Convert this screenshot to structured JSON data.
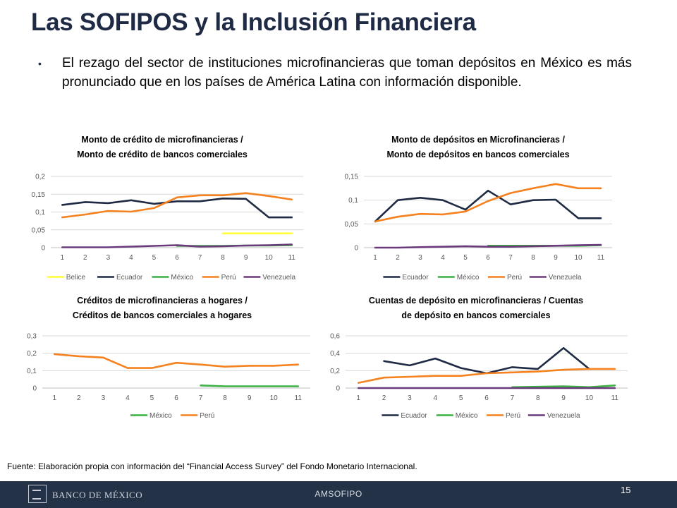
{
  "slide": {
    "title": "Las SOFIPOS y la Inclusión Financiera",
    "bullet": "El rezago del sector de instituciones microfinancieras que toman depósitos en México es más pronunciado que en los países de América Latina con información disponible.",
    "source": "Fuente: Elaboración propia con información del “Financial Access Survey” del Fondo Monetario Internacional.",
    "footer_center": "AMSOFIPO",
    "footer_brand": "BANCO DE MÉXICO",
    "page_number": "15"
  },
  "colors": {
    "Belice": "#ffff33",
    "Ecuador": "#1f2a44",
    "México": "#3cb043",
    "Perú": "#f5821f",
    "Venezuela": "#6b3a7d",
    "title": "#1f2a44",
    "grid": "#d9d9d9",
    "footer": "#243247"
  },
  "chart_data": [
    {
      "type": "line",
      "title": [
        "Monto de crédito de microfinancieras /",
        "Monto de crédito de bancos comerciales"
      ],
      "x": [
        1,
        2,
        3,
        4,
        5,
        6,
        7,
        8,
        9,
        10,
        11
      ],
      "ylim": [
        0,
        0.2
      ],
      "yticks": [
        0,
        0.05,
        0.1,
        0.15,
        0.2
      ],
      "ytick_labels": [
        "0",
        "0,05",
        "0,1",
        "0,15",
        "0,2"
      ],
      "grid": true,
      "legend": "bottom",
      "legend_order": [
        "Belice",
        "Ecuador",
        "México",
        "Perú",
        "Venezuela"
      ],
      "series": [
        {
          "name": "Belice",
          "values": [
            null,
            null,
            null,
            null,
            null,
            null,
            null,
            0.04,
            0.04,
            0.04,
            0.04
          ]
        },
        {
          "name": "Ecuador",
          "values": [
            0.12,
            0.128,
            0.125,
            0.133,
            0.123,
            0.13,
            0.13,
            0.138,
            0.137,
            0.085,
            0.085
          ]
        },
        {
          "name": "México",
          "values": [
            null,
            null,
            null,
            null,
            null,
            0.005,
            0.005,
            0.005,
            0.006,
            0.006,
            0.007
          ]
        },
        {
          "name": "Perú",
          "values": [
            0.085,
            0.093,
            0.103,
            0.101,
            0.111,
            0.141,
            0.147,
            0.147,
            0.153,
            0.145,
            0.135
          ]
        },
        {
          "name": "Venezuela",
          "values": [
            0.001,
            0.001,
            0.001,
            0.003,
            0.005,
            0.007,
            0.003,
            0.004,
            0.006,
            0.007,
            0.009
          ]
        }
      ]
    },
    {
      "type": "line",
      "title": [
        "Monto de depósitos en Microfinancieras /",
        "Monto de depósitos en bancos comerciales"
      ],
      "x": [
        1,
        2,
        3,
        4,
        5,
        6,
        7,
        8,
        9,
        10,
        11
      ],
      "ylim": [
        0,
        0.15
      ],
      "yticks": [
        0,
        0.05,
        0.1,
        0.15
      ],
      "ytick_labels": [
        "0",
        "0,05",
        "0,1",
        "0,15"
      ],
      "grid": true,
      "legend": "bottom",
      "legend_order": [
        "Ecuador",
        "México",
        "Perú",
        "Venezuela"
      ],
      "series": [
        {
          "name": "Ecuador",
          "values": [
            0.055,
            0.1,
            0.105,
            0.1,
            0.08,
            0.12,
            0.091,
            0.1,
            0.101,
            0.062,
            0.062
          ]
        },
        {
          "name": "México",
          "values": [
            null,
            null,
            null,
            null,
            null,
            0.004,
            0.004,
            0.004,
            0.004,
            0.004,
            0.005
          ]
        },
        {
          "name": "Perú",
          "values": [
            0.055,
            0.065,
            0.071,
            0.07,
            0.076,
            0.098,
            0.115,
            0.125,
            0.134,
            0.125,
            0.125
          ]
        },
        {
          "name": "Venezuela",
          "values": [
            0,
            0,
            0.001,
            0.002,
            0.003,
            0.002,
            0.002,
            0.003,
            0.004,
            0.005,
            0.006
          ]
        }
      ]
    },
    {
      "type": "line",
      "title": [
        "Créditos de microfinancieras a hogares /",
        "Créditos de bancos comerciales a hogares"
      ],
      "x": [
        1,
        2,
        3,
        4,
        5,
        6,
        7,
        8,
        9,
        10,
        11
      ],
      "ylim": [
        0,
        0.3
      ],
      "yticks": [
        0,
        0.1,
        0.2,
        0.3
      ],
      "ytick_labels": [
        "0",
        "0,1",
        "0,2",
        "0,3"
      ],
      "grid": true,
      "legend": "bottom",
      "legend_order": [
        "México",
        "Perú"
      ],
      "series": [
        {
          "name": "México",
          "values": [
            null,
            null,
            null,
            null,
            null,
            null,
            0.015,
            0.01,
            0.01,
            0.01,
            0.01
          ]
        },
        {
          "name": "Perú",
          "values": [
            0.195,
            0.183,
            0.175,
            0.115,
            0.115,
            0.145,
            0.135,
            0.123,
            0.128,
            0.128,
            0.135
          ]
        }
      ]
    },
    {
      "type": "line",
      "title": [
        "Cuentas de depósito en microfinancieras / Cuentas",
        "de depósito en bancos comerciales"
      ],
      "x": [
        1,
        2,
        3,
        4,
        5,
        6,
        7,
        8,
        9,
        10,
        11
      ],
      "ylim": [
        0,
        0.6
      ],
      "yticks": [
        0,
        0.2,
        0.4,
        0.6
      ],
      "ytick_labels": [
        "0",
        "0,2",
        "0,4",
        "0,6"
      ],
      "grid": true,
      "legend": "bottom",
      "legend_order": [
        "Ecuador",
        "México",
        "Perú",
        "Venezuela"
      ],
      "series": [
        {
          "name": "Ecuador",
          "values": [
            null,
            0.31,
            0.26,
            0.34,
            0.23,
            0.17,
            0.24,
            0.22,
            0.46,
            0.22,
            null
          ]
        },
        {
          "name": "México",
          "values": [
            null,
            null,
            null,
            null,
            null,
            null,
            0.01,
            0.015,
            0.02,
            0.01,
            0.03
          ]
        },
        {
          "name": "Perú",
          "values": [
            0.06,
            0.12,
            0.13,
            0.14,
            0.14,
            0.17,
            0.18,
            0.19,
            0.21,
            0.22,
            0.22
          ]
        },
        {
          "name": "Venezuela",
          "values": [
            0,
            0,
            0,
            0,
            0,
            0,
            0,
            0,
            0,
            0,
            0
          ]
        }
      ]
    }
  ]
}
